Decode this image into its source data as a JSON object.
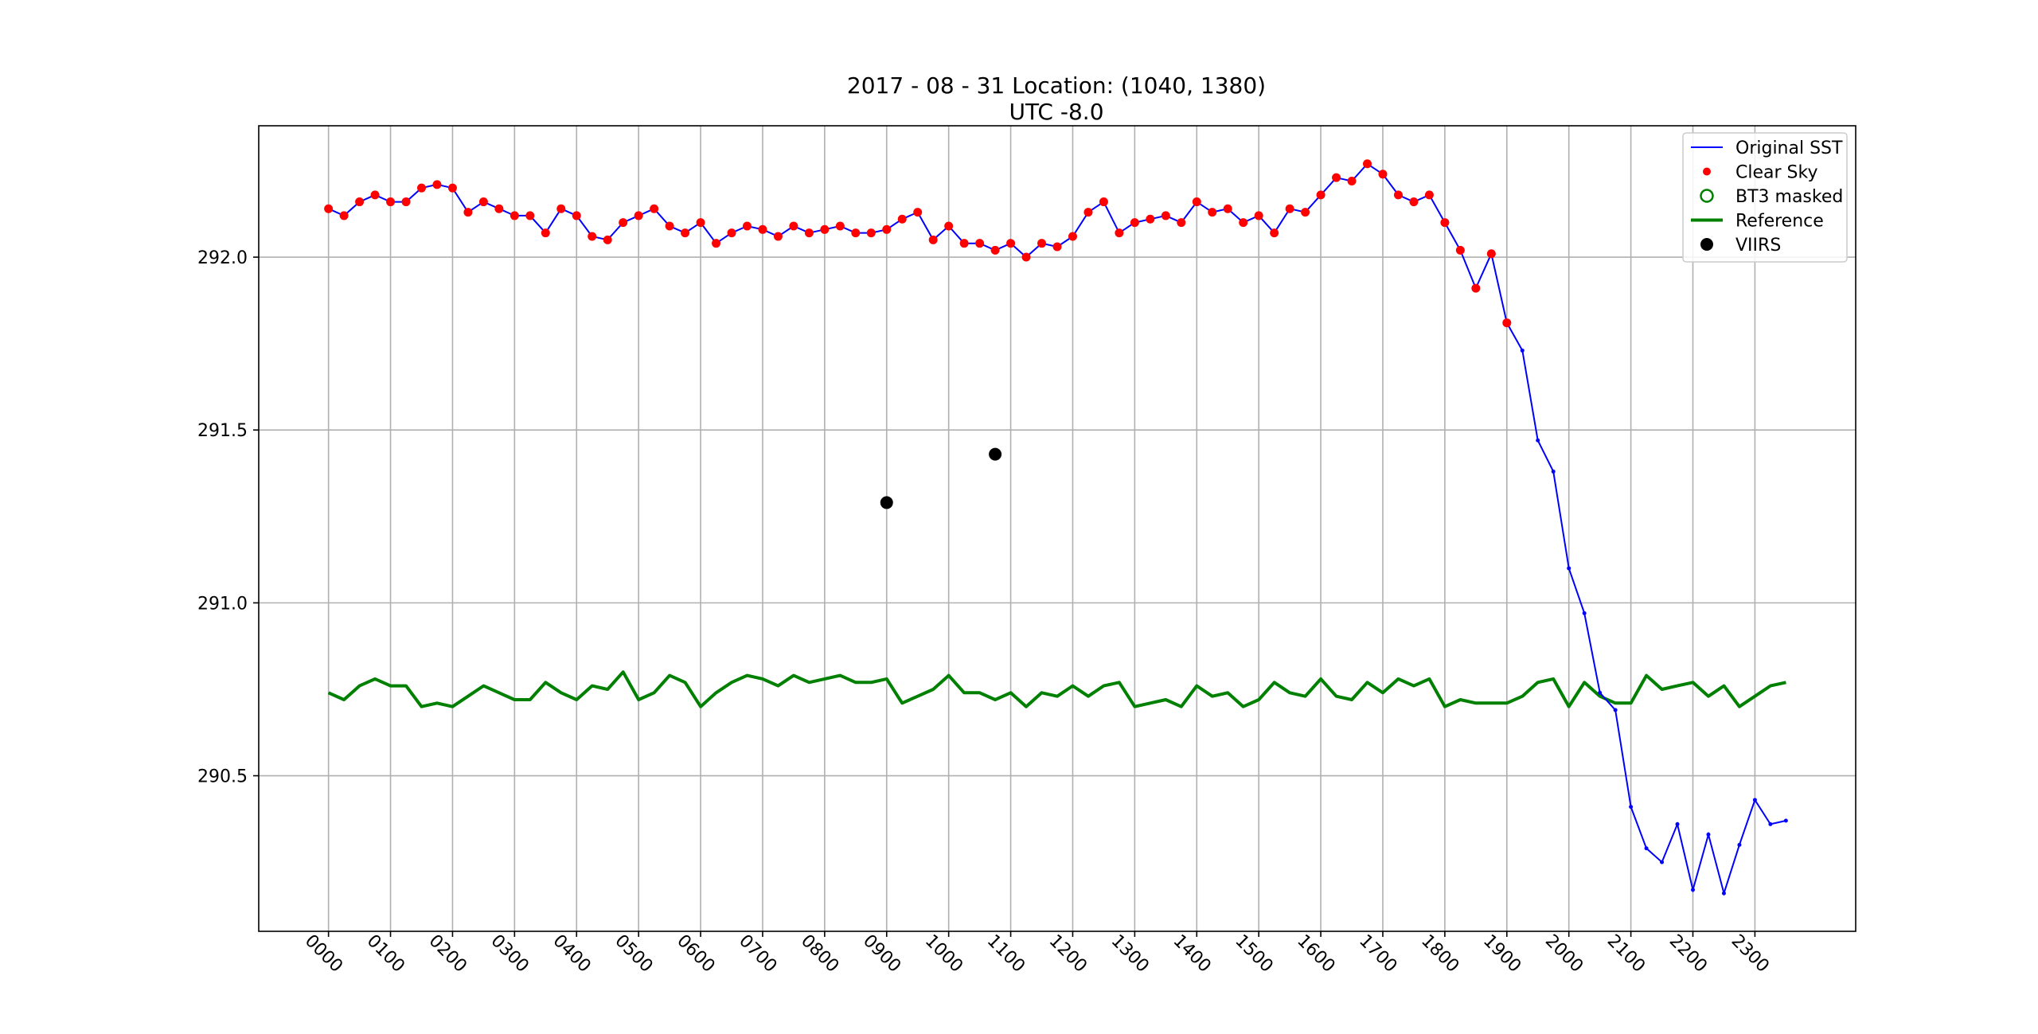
{
  "chart_data": {
    "type": "line",
    "title": "2017 - 08 - 31   Location: (1040, 1380)",
    "subtitle": "UTC -8.0",
    "xlabel": "",
    "ylabel": "",
    "x_ticks": [
      "0000",
      "0100",
      "0200",
      "0300",
      "0400",
      "0500",
      "0600",
      "0700",
      "0800",
      "0900",
      "1000",
      "1100",
      "1200",
      "1300",
      "1400",
      "1500",
      "1600",
      "1700",
      "1800",
      "1900",
      "2000",
      "2100",
      "2200",
      "2300"
    ],
    "x_tick_step": 4,
    "y_ticks": [
      "290.5",
      "291.0",
      "291.5",
      "292.0"
    ],
    "ylim": [
      290.05,
      292.38
    ],
    "xlim": [
      -4.5,
      98.5
    ],
    "grid": true,
    "legend_position": "top-right",
    "colors": {
      "original": "#0000ff",
      "clear_sky": "#ff0000",
      "bt3": "#008000",
      "reference": "#008000",
      "viirs": "#000000"
    },
    "legend": [
      {
        "key": "original",
        "label": "Original SST",
        "marker": "line"
      },
      {
        "key": "clear_sky",
        "label": "Clear Sky",
        "marker": "dot"
      },
      {
        "key": "bt3",
        "label": "BT3 masked",
        "marker": "ring"
      },
      {
        "key": "reference",
        "label": "Reference",
        "marker": "thickline"
      },
      {
        "key": "viirs",
        "label": "VIIRS",
        "marker": "bigdot"
      }
    ],
    "series": [
      {
        "key": "original",
        "values": [
          292.14,
          292.12,
          292.16,
          292.18,
          292.16,
          292.16,
          292.2,
          292.21,
          292.2,
          292.13,
          292.16,
          292.14,
          292.12,
          292.12,
          292.07,
          292.14,
          292.12,
          292.06,
          292.05,
          292.1,
          292.12,
          292.14,
          292.09,
          292.07,
          292.1,
          292.04,
          292.07,
          292.09,
          292.08,
          292.06,
          292.09,
          292.07,
          292.08,
          292.09,
          292.07,
          292.07,
          292.08,
          292.11,
          292.13,
          292.05,
          292.09,
          292.04,
          292.04,
          292.02,
          292.04,
          292.0,
          292.04,
          292.03,
          292.06,
          292.13,
          292.16,
          292.07,
          292.1,
          292.11,
          292.12,
          292.1,
          292.16,
          292.13,
          292.14,
          292.1,
          292.12,
          292.07,
          292.14,
          292.13,
          292.18,
          292.23,
          292.22,
          292.27,
          292.24,
          292.18,
          292.16,
          292.18,
          292.1,
          292.02,
          291.91,
          292.01,
          291.81,
          291.73,
          291.47,
          291.38,
          291.1,
          290.97,
          290.74,
          290.69,
          290.41,
          290.29,
          290.25,
          290.36,
          290.17,
          290.33,
          290.16,
          290.3,
          290.43,
          290.36,
          290.37
        ]
      },
      {
        "key": "clear_sky",
        "clear_count": 77
      },
      {
        "key": "reference",
        "values": [
          290.74,
          290.72,
          290.76,
          290.78,
          290.76,
          290.76,
          290.7,
          290.71,
          290.7,
          290.73,
          290.76,
          290.74,
          290.72,
          290.72,
          290.77,
          290.74,
          290.72,
          290.76,
          290.75,
          290.8,
          290.72,
          290.74,
          290.79,
          290.77,
          290.7,
          290.74,
          290.77,
          290.79,
          290.78,
          290.76,
          290.79,
          290.77,
          290.78,
          290.79,
          290.77,
          290.77,
          290.78,
          290.71,
          290.73,
          290.75,
          290.79,
          290.74,
          290.74,
          290.72,
          290.74,
          290.7,
          290.74,
          290.73,
          290.76,
          290.73,
          290.76,
          290.77,
          290.7,
          290.71,
          290.72,
          290.7,
          290.76,
          290.73,
          290.74,
          290.7,
          290.72,
          290.77,
          290.74,
          290.73,
          290.78,
          290.73,
          290.72,
          290.77,
          290.74,
          290.78,
          290.76,
          290.78,
          290.7,
          290.72,
          290.71,
          290.71,
          290.71,
          290.73,
          290.77,
          290.78,
          290.7,
          290.77,
          290.73,
          290.71,
          290.71,
          290.79,
          290.75,
          290.76,
          290.77,
          290.73,
          290.76,
          290.7,
          290.73,
          290.76,
          290.77
        ]
      },
      {
        "key": "viirs",
        "points": [
          [
            36,
            291.29
          ],
          [
            43,
            291.43
          ]
        ]
      }
    ]
  }
}
